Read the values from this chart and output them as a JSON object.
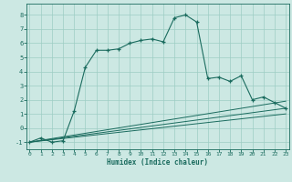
{
  "xlabel": "Humidex (Indice chaleur)",
  "bg_color": "#cce8e3",
  "line_color": "#1a6b5e",
  "grid_color": "#9dcdc4",
  "main_line": {
    "x": [
      0,
      1,
      2,
      3,
      4,
      5,
      6,
      7,
      8,
      9,
      10,
      11,
      12,
      13,
      14,
      15,
      16,
      17,
      18,
      19,
      20,
      21,
      22,
      23
    ],
    "y": [
      -1.0,
      -0.7,
      -1.0,
      -0.9,
      1.2,
      4.3,
      5.5,
      5.5,
      5.6,
      6.0,
      6.2,
      6.3,
      6.1,
      7.8,
      8.0,
      7.5,
      3.5,
      3.6,
      3.3,
      3.7,
      2.0,
      2.2,
      1.8,
      1.4
    ]
  },
  "ref_lines": [
    {
      "x": [
        0,
        23
      ],
      "y": [
        -1.0,
        1.0
      ]
    },
    {
      "x": [
        0,
        23
      ],
      "y": [
        -1.0,
        1.4
      ]
    },
    {
      "x": [
        0,
        23
      ],
      "y": [
        -1.0,
        1.9
      ]
    }
  ],
  "ylim": [
    -1.5,
    8.8
  ],
  "xlim": [
    -0.3,
    23.3
  ],
  "yticks": [
    -1,
    0,
    1,
    2,
    3,
    4,
    5,
    6,
    7,
    8
  ],
  "xticks": [
    0,
    1,
    2,
    3,
    4,
    5,
    6,
    7,
    8,
    9,
    10,
    11,
    12,
    13,
    14,
    15,
    16,
    17,
    18,
    19,
    20,
    21,
    22,
    23
  ]
}
